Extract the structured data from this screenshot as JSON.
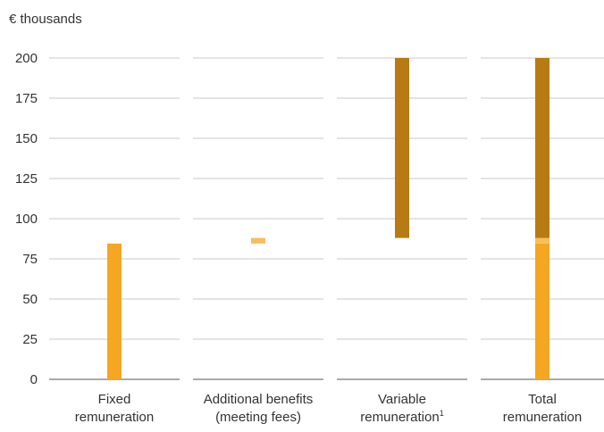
{
  "chart_data": {
    "type": "bar",
    "subtype": "waterfall",
    "unit_label": "€ thousands",
    "ylim": [
      0,
      200
    ],
    "yticks": [
      0,
      25,
      50,
      75,
      100,
      125,
      150,
      175,
      200
    ],
    "grid": true,
    "categories": [
      {
        "line1": "Fixed",
        "line2": "remuneration",
        "footnote": ""
      },
      {
        "line1": "Additional benefits",
        "line2": "(meeting fees)",
        "footnote": ""
      },
      {
        "line1": "Variable",
        "line2": "remuneration",
        "footnote": "1"
      },
      {
        "line1": "Total",
        "line2": "remuneration",
        "footnote": ""
      }
    ],
    "bars": [
      {
        "category_index": 0,
        "segments": [
          {
            "from": 0,
            "to": 84.5,
            "color": "#F5A623"
          }
        ]
      },
      {
        "category_index": 1,
        "segments": [
          {
            "from": 84.5,
            "to": 88,
            "color": "#F7BE5E"
          }
        ]
      },
      {
        "category_index": 2,
        "segments": [
          {
            "from": 88,
            "to": 200,
            "color": "#B87A12"
          }
        ]
      },
      {
        "category_index": 3,
        "segments": [
          {
            "from": 0,
            "to": 84.5,
            "color": "#F5A623"
          },
          {
            "from": 84.5,
            "to": 88,
            "color": "#F7BE5E"
          },
          {
            "from": 88,
            "to": 200,
            "color": "#B87A12"
          }
        ]
      }
    ]
  }
}
